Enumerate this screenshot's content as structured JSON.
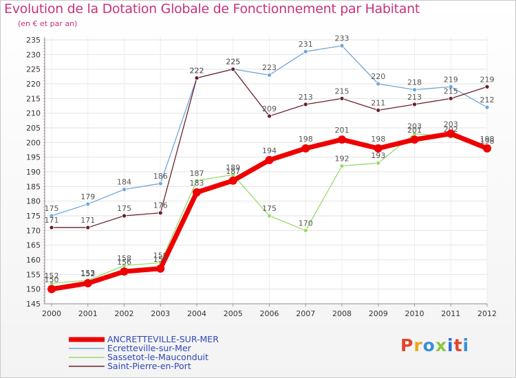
{
  "header": {
    "title": "Evolution de la Dotation Globale de Fonctionnement par Habitant",
    "subtitle": "(en € et par an)"
  },
  "logo": {
    "text": "Proxiti",
    "letters": [
      "P",
      "r",
      "o",
      "x",
      "i",
      "t",
      "i"
    ],
    "colors": [
      "#e0462d",
      "#e8a81a",
      "#3a8fd6",
      "#8cc63f",
      "#2a6fd1",
      "#e0462d",
      "#3a8fd6"
    ]
  },
  "chart_data": {
    "type": "line",
    "x": [
      2000,
      2001,
      2002,
      2003,
      2004,
      2005,
      2006,
      2007,
      2008,
      2009,
      2010,
      2011,
      2012
    ],
    "ylim": [
      145,
      235
    ],
    "yticks": [
      145,
      150,
      155,
      160,
      165,
      170,
      175,
      180,
      185,
      190,
      195,
      200,
      205,
      210,
      215,
      220,
      225,
      230,
      235
    ],
    "grid": true,
    "legend_position": "bottom-left",
    "series": [
      {
        "name": "ANCRETTEVILLE-SUR-MER",
        "color": "#ee0000",
        "emphasis": true,
        "values": [
          150,
          152,
          156,
          157,
          183,
          187,
          194,
          198,
          201,
          198,
          201,
          203,
          198
        ]
      },
      {
        "name": "Ecretteville-sur-Mer",
        "color": "#6fa6d8",
        "emphasis": false,
        "values": [
          175,
          179,
          184,
          186,
          222,
          225,
          223,
          231,
          233,
          220,
          218,
          219,
          212
        ]
      },
      {
        "name": "Sassetot-le-Mauconduit",
        "color": "#99d96b",
        "emphasis": false,
        "values": [
          152,
          153,
          158,
          159,
          187,
          189,
          175,
          170,
          192,
          193,
          203,
          202,
          198
        ]
      },
      {
        "name": "Saint-Pierre-en-Port",
        "color": "#6b1f2a",
        "emphasis": false,
        "values": [
          171,
          171,
          175,
          176,
          222,
          225,
          209,
          213,
          215,
          211,
          213,
          215,
          219
        ]
      }
    ]
  }
}
